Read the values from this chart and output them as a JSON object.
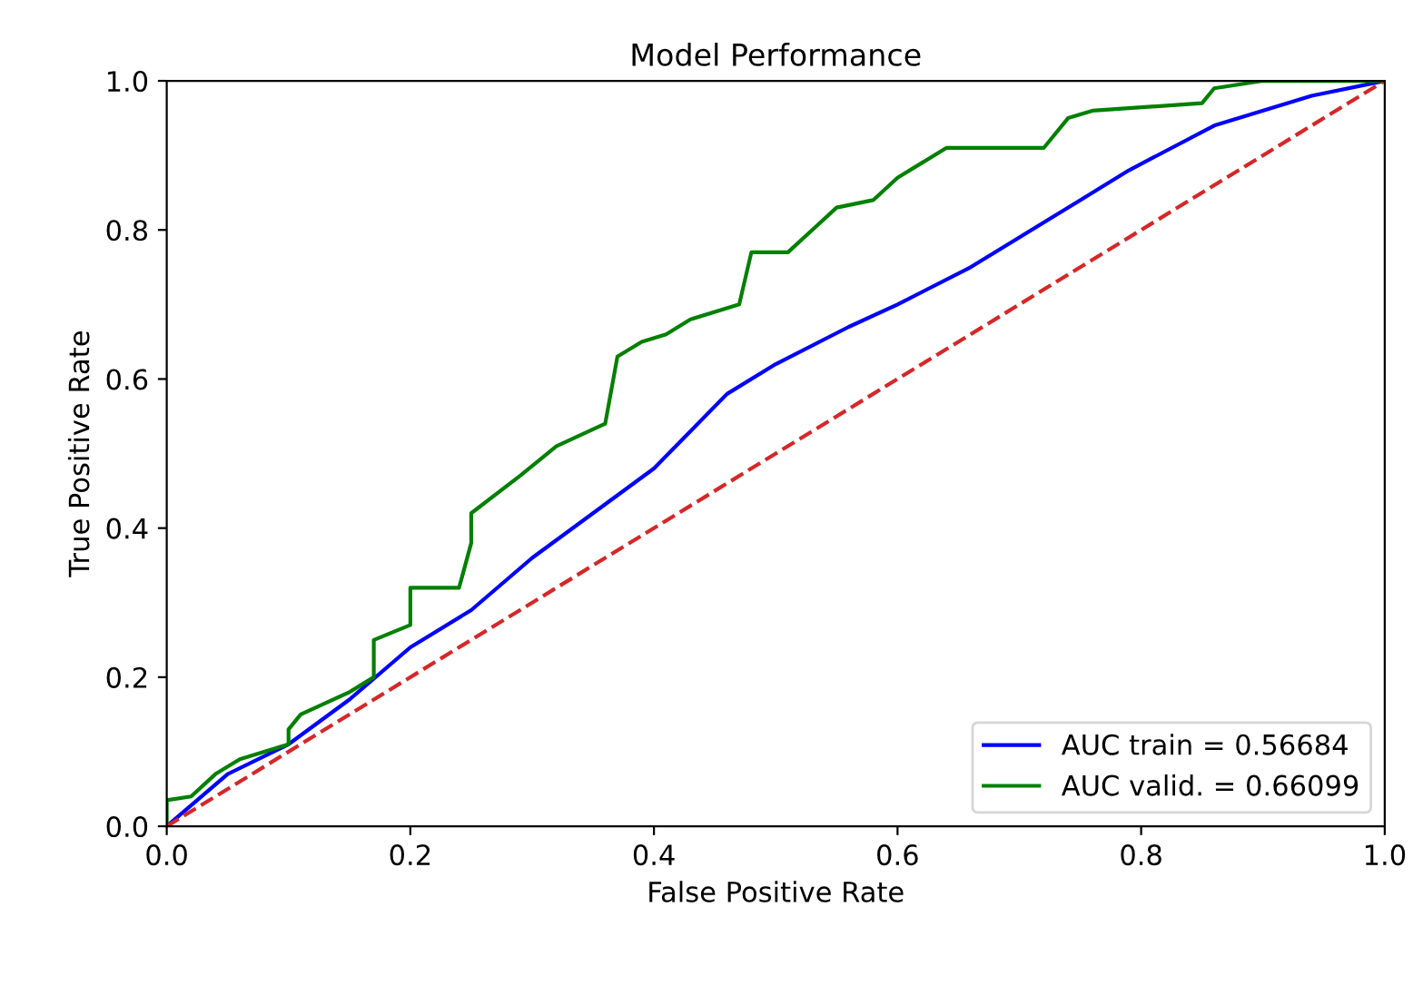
{
  "chart_data": {
    "type": "line",
    "title": "Model Performance",
    "xlabel": "False Positive Rate",
    "ylabel": "True Positive Rate",
    "xlim": [
      0,
      1
    ],
    "ylim": [
      0,
      1
    ],
    "xticks": [
      {
        "value": 0,
        "label": "0.0"
      },
      {
        "value": 0.2,
        "label": "0.2"
      },
      {
        "value": 0.4,
        "label": "0.4"
      },
      {
        "value": 0.6,
        "label": "0.6"
      },
      {
        "value": 0.8,
        "label": "0.8"
      },
      {
        "value": 1,
        "label": "1.0"
      }
    ],
    "yticks": [
      {
        "value": 0,
        "label": "0.0"
      },
      {
        "value": 0.2,
        "label": "0.2"
      },
      {
        "value": 0.4,
        "label": "0.4"
      },
      {
        "value": 0.6,
        "label": "0.6"
      },
      {
        "value": 0.8,
        "label": "0.8"
      },
      {
        "value": 1,
        "label": "1.0"
      }
    ],
    "grid": false,
    "legend": "bottom right",
    "series": [
      {
        "name": "AUC train = 0.56684",
        "color": "#0000ff",
        "x": [
          0,
          0.05,
          0.1,
          0.15,
          0.2,
          0.25,
          0.3,
          0.35,
          0.4,
          0.46,
          0.5,
          0.56,
          0.6,
          0.66,
          0.7,
          0.75,
          0.79,
          0.86,
          0.94,
          1
        ],
        "values": [
          0,
          0.07,
          0.11,
          0.17,
          0.24,
          0.29,
          0.36,
          0.42,
          0.48,
          0.58,
          0.62,
          0.67,
          0.7,
          0.75,
          0.79,
          0.84,
          0.88,
          0.94,
          0.98,
          1
        ]
      },
      {
        "name": "AUC valid. = 0.66099",
        "color": "#008000",
        "x": [
          0,
          0,
          0.02,
          0.04,
          0.06,
          0.08,
          0.1,
          0.1,
          0.11,
          0.15,
          0.17,
          0.17,
          0.2,
          0.2,
          0.24,
          0.25,
          0.25,
          0.29,
          0.32,
          0.36,
          0.37,
          0.39,
          0.41,
          0.43,
          0.47,
          0.48,
          0.51,
          0.53,
          0.55,
          0.58,
          0.6,
          0.62,
          0.64,
          0.72,
          0.74,
          0.76,
          0.85,
          0.86,
          0.9,
          1
        ],
        "values": [
          0,
          0.035,
          0.04,
          0.07,
          0.09,
          0.1,
          0.11,
          0.13,
          0.15,
          0.18,
          0.2,
          0.25,
          0.27,
          0.32,
          0.32,
          0.38,
          0.42,
          0.47,
          0.51,
          0.54,
          0.63,
          0.65,
          0.66,
          0.68,
          0.7,
          0.77,
          0.77,
          0.8,
          0.83,
          0.84,
          0.87,
          0.89,
          0.91,
          0.91,
          0.95,
          0.96,
          0.97,
          0.99,
          1,
          1
        ]
      },
      {
        "color": "#d62728",
        "line_style": "dashed",
        "x": [
          0,
          1
        ],
        "values": [
          0,
          1
        ]
      }
    ]
  }
}
